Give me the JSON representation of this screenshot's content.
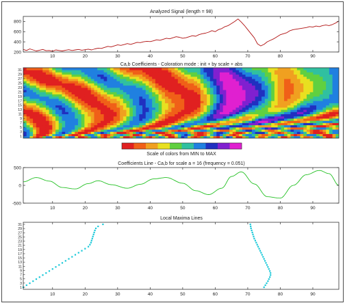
{
  "colors": {
    "signal": "#b01010",
    "coef_line": "#22c022",
    "maxima": "#18c8d8",
    "axis": "#303030"
  },
  "chart_data": [
    {
      "type": "line",
      "title": "Analyzed Signal  (length = 98)",
      "xlim": [
        1,
        98
      ],
      "ylim": [
        200,
        900
      ],
      "x_ticks": [
        10,
        20,
        30,
        40,
        50,
        60,
        70,
        80,
        90
      ],
      "y_ticks": [
        200,
        400,
        600,
        800
      ],
      "series": [
        {
          "x": [
            1,
            2,
            3,
            4,
            5,
            6,
            7,
            8,
            9,
            10,
            11,
            12,
            13,
            14,
            15,
            16,
            17,
            18,
            19,
            20,
            21,
            22,
            23,
            24,
            25,
            26,
            27,
            28,
            29,
            30,
            31,
            32,
            33,
            34,
            35,
            36,
            37,
            38,
            39,
            40,
            41,
            42,
            43,
            44,
            45,
            46,
            47,
            48,
            49,
            50,
            51,
            52,
            53,
            54,
            55,
            56,
            57,
            58,
            59,
            60,
            61,
            62,
            63,
            64,
            65,
            66,
            67,
            68,
            69,
            70,
            71,
            72,
            73,
            74,
            75,
            76,
            77,
            78,
            79,
            80,
            81,
            82,
            83,
            84,
            85,
            86,
            87,
            88,
            89,
            90,
            91,
            92,
            93,
            94,
            95,
            96,
            97,
            98
          ],
          "values": [
            250,
            230,
            260,
            240,
            220,
            235,
            250,
            225,
            230,
            215,
            240,
            230,
            220,
            235,
            245,
            230,
            240,
            250,
            235,
            245,
            255,
            240,
            260,
            275,
            270,
            290,
            310,
            300,
            320,
            340,
            330,
            345,
            365,
            350,
            370,
            390,
            385,
            400,
            410,
            405,
            420,
            440,
            430,
            450,
            470,
            460,
            480,
            500,
            490,
            470,
            480,
            500,
            520,
            510,
            540,
            560,
            570,
            590,
            620,
            600,
            640,
            660,
            700,
            720,
            760,
            800,
            850,
            790,
            720,
            640,
            560,
            480,
            360,
            320,
            350,
            400,
            430,
            460,
            500,
            540,
            560,
            580,
            620,
            640,
            650,
            660,
            670,
            680,
            700,
            690,
            710,
            700,
            720,
            730,
            720,
            740,
            770,
            810
          ]
        }
      ]
    },
    {
      "type": "heatmap",
      "title": "Ca,b Coefficients - Coloration mode : init + by scale + abs",
      "xlim": [
        1,
        98
      ],
      "y_tick_labels": [
        "1",
        "3",
        "5",
        "7",
        "9",
        "11",
        "13",
        "15",
        "17",
        "19",
        "21",
        "23",
        "25",
        "27",
        "29",
        "31"
      ],
      "colorbar_label": "Scale of colors from MIN to MAX",
      "colorbar_colors": [
        "#e02020",
        "#f06018",
        "#f0a020",
        "#e8e020",
        "#60d040",
        "#30c0a0",
        "#2080e0",
        "#2030c0",
        "#8020d0",
        "#e020d0"
      ]
    },
    {
      "type": "line",
      "title": "Coefficients Line - Ca,b for scale a = 16  (frequency =  0.051)",
      "xlim": [
        1,
        98
      ],
      "ylim": [
        -500,
        500
      ],
      "x_ticks": [
        10,
        20,
        30,
        40,
        50,
        60,
        70,
        80,
        90
      ],
      "y_ticks": [
        -500,
        0,
        500
      ],
      "series": [
        {
          "x": [
            1,
            5,
            9,
            13,
            17,
            21,
            24,
            28,
            33,
            37,
            41,
            45,
            50,
            54,
            58,
            62,
            65,
            68,
            72,
            76,
            80,
            84,
            88,
            92,
            95,
            98
          ],
          "values": [
            100,
            220,
            120,
            -60,
            -100,
            50,
            130,
            20,
            -80,
            30,
            180,
            220,
            60,
            -150,
            -260,
            -80,
            250,
            380,
            40,
            -320,
            -360,
            0,
            300,
            420,
            330,
            0
          ]
        }
      ]
    },
    {
      "type": "scatter",
      "title": "Local Maxima Lines",
      "xlim": [
        1,
        98
      ],
      "y_tick_labels": [
        "1",
        "3",
        "5",
        "7",
        "9",
        "11",
        "13",
        "15",
        "17",
        "19",
        "21",
        "23",
        "25",
        "27",
        "29",
        "31"
      ],
      "x_ticks": [
        10,
        20,
        30,
        40,
        50,
        60,
        70,
        80,
        90
      ],
      "series": [
        {
          "name": "",
          "x": [
            1,
            2,
            3,
            4,
            5,
            6,
            7,
            8,
            9,
            10,
            11,
            12,
            13,
            14,
            15,
            16,
            17,
            18,
            19,
            20,
            21,
            21.5,
            21.8,
            22,
            22.2,
            22.4,
            22.6,
            22.8,
            23,
            23.3,
            24,
            25.5
          ],
          "values": [
            1,
            2,
            3,
            4,
            5,
            6,
            7,
            8,
            9,
            10,
            11,
            12,
            13,
            14,
            15,
            16,
            17,
            18,
            19,
            20,
            21,
            22,
            23,
            24,
            25,
            26,
            27,
            28,
            29,
            30,
            31,
            32
          ]
        },
        {
          "name": "",
          "x": [
            75,
            75.4,
            75.8,
            76.2,
            76.5,
            76.8,
            77,
            77,
            76.8,
            76.5,
            76.2,
            75.9,
            75.6,
            75.3,
            75,
            74.7,
            74.4,
            74.1,
            73.8,
            73.5,
            73.2,
            72.9,
            72.6,
            72.3,
            72,
            71.8,
            71.6,
            71.4,
            71.2,
            71,
            70.9,
            70.8
          ],
          "values": [
            1,
            2,
            3,
            4,
            5,
            6,
            7,
            8,
            9,
            10,
            11,
            12,
            13,
            14,
            15,
            16,
            17,
            18,
            19,
            20,
            21,
            22,
            23,
            24,
            25,
            26,
            27,
            28,
            29,
            30,
            31,
            32
          ]
        }
      ]
    }
  ]
}
